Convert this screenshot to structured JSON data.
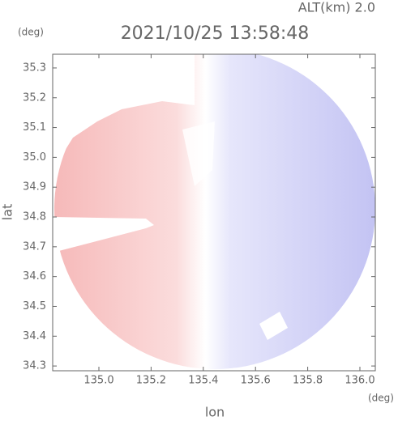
{
  "chart_data": {
    "type": "radar-map",
    "title": "2021/10/25 13:58:48",
    "annotation": "ALT(km)  2.0",
    "x_label": "lon",
    "y_label": "lat",
    "x_unit": "(deg)",
    "y_unit": "(deg)",
    "xlim": [
      134.823,
      136.059
    ],
    "ylim": [
      34.284,
      35.346
    ],
    "xticks": [
      {
        "value": 135.0,
        "label": "135.0"
      },
      135.2,
      135.4,
      135.6,
      135.8,
      {
        "value": 136.0,
        "label": "136.0"
      }
    ],
    "yticks": [
      34.3,
      34.4,
      34.5,
      34.6,
      34.7,
      34.8,
      34.9,
      {
        "value": 35.0,
        "label": "35.0"
      },
      35.1,
      35.2,
      35.3
    ]
  }
}
